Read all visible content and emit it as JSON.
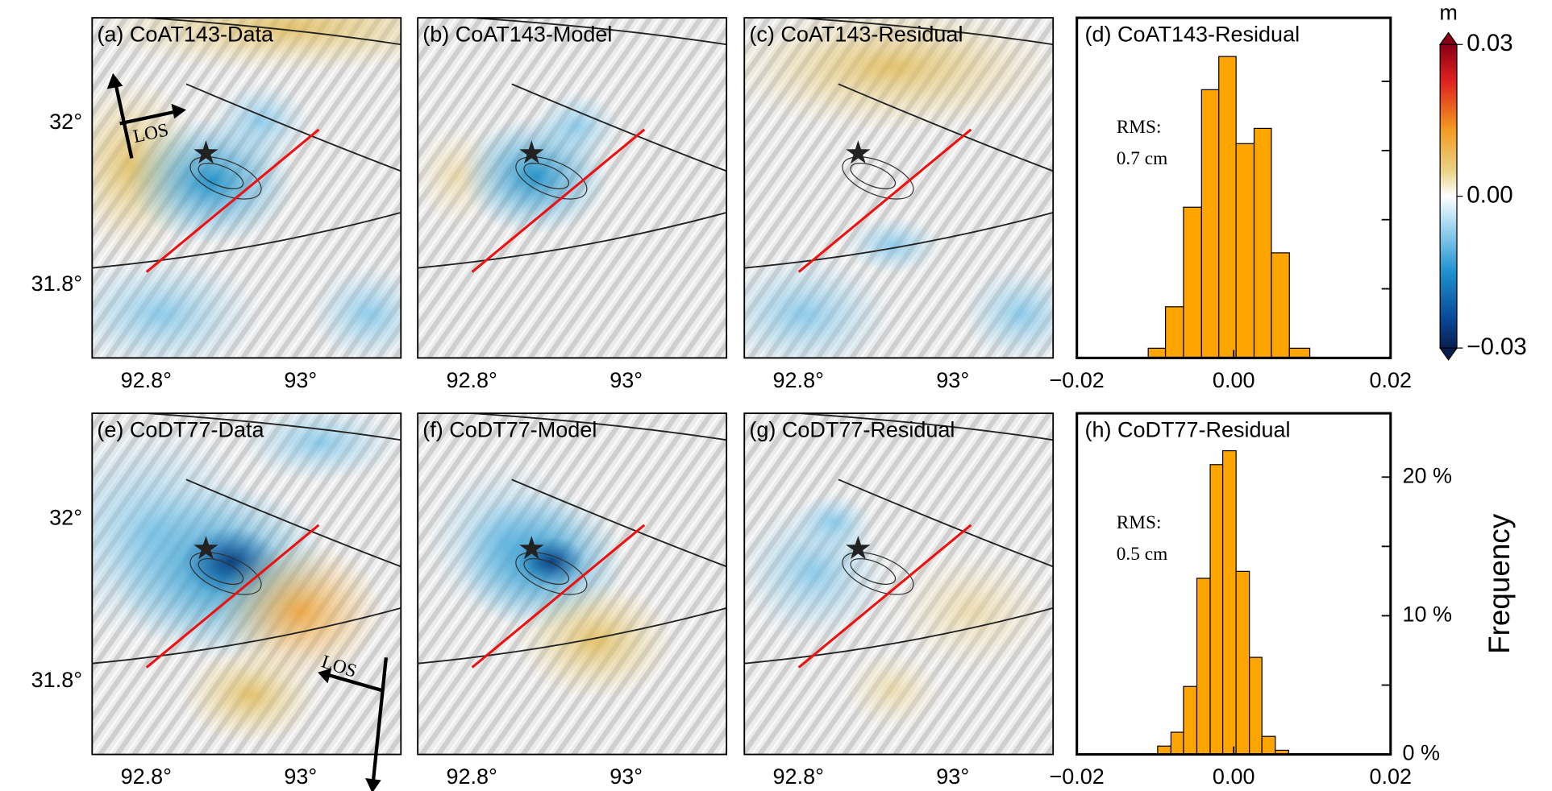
{
  "chart_data": [
    {
      "type": "map",
      "title": "(a) CoAT143-Data",
      "xlim": [
        92.73,
        93.13
      ],
      "ylim": [
        31.71,
        32.13
      ],
      "xticks": [
        {
          "value": 92.8,
          "label": "92.8°"
        },
        {
          "value": 93,
          "label": "93°"
        }
      ],
      "yticks": [
        {
          "value": 32,
          "label": "32°"
        },
        {
          "value": 31.8,
          "label": "31.8°"
        }
      ],
      "annotations": [
        "LOS"
      ]
    },
    {
      "type": "map",
      "title": "(b) CoAT143-Model",
      "xlim": [
        92.73,
        93.13
      ],
      "ylim": [
        31.71,
        32.13
      ],
      "xticks": [
        {
          "value": 92.8,
          "label": "92.8°"
        },
        {
          "value": 93,
          "label": "93°"
        }
      ]
    },
    {
      "type": "map",
      "title": "(c) CoAT143-Residual",
      "xlim": [
        92.73,
        93.13
      ],
      "ylim": [
        31.71,
        32.13
      ],
      "xticks": [
        {
          "value": 92.8,
          "label": "92.8°"
        },
        {
          "value": 93,
          "label": "93°"
        }
      ]
    },
    {
      "type": "histogram",
      "title": "(d) CoAT143-Residual",
      "color": "#ffa500",
      "bins": [
        -0.0109,
        -0.0087,
        -0.0064,
        -0.0041,
        -0.0019,
        0.0003,
        0.0026,
        0.0048,
        0.0071,
        0.0097
      ],
      "values": [
        0.7,
        3.7,
        10.9,
        19.4,
        21.8,
        15.5,
        16.6,
        7.6,
        0.7
      ],
      "xlim": [
        -0.02,
        0.02
      ],
      "xticks": [
        {
          "value": -0.02,
          "label": "−0.02"
        },
        {
          "value": 0,
          "label": "0.00"
        },
        {
          "value": 0.02,
          "label": "0.02"
        }
      ],
      "ylim": [
        0,
        24.6
      ],
      "yminor_ticks": [
        0,
        5,
        10,
        15,
        20
      ],
      "annotations": [
        "RMS:",
        "0.7 cm"
      ]
    },
    {
      "type": "map",
      "title": "(e) CoDT77-Data",
      "xlim": [
        92.73,
        93.13
      ],
      "ylim": [
        31.71,
        32.13
      ],
      "xticks": [
        {
          "value": 92.8,
          "label": "92.8°"
        },
        {
          "value": 93,
          "label": "93°"
        }
      ],
      "yticks": [
        {
          "value": 32,
          "label": "32°"
        },
        {
          "value": 31.8,
          "label": "31.8°"
        }
      ],
      "annotations": [
        "LOS"
      ]
    },
    {
      "type": "map",
      "title": "(f) CoDT77-Model",
      "xlim": [
        92.73,
        93.13
      ],
      "ylim": [
        31.71,
        32.13
      ],
      "xticks": [
        {
          "value": 92.8,
          "label": "92.8°"
        },
        {
          "value": 93,
          "label": "93°"
        }
      ]
    },
    {
      "type": "map",
      "title": "(g) CoDT77-Residual",
      "xlim": [
        92.73,
        93.13
      ],
      "ylim": [
        31.71,
        32.13
      ],
      "xticks": [
        {
          "value": 92.8,
          "label": "92.8°"
        },
        {
          "value": 93,
          "label": "93°"
        }
      ]
    },
    {
      "type": "histogram",
      "title": "(h) CoDT77-Residual",
      "color": "#ffa500",
      "bins": [
        -0.0097,
        -0.008,
        -0.0064,
        -0.0047,
        -0.003,
        -0.0014,
        0.0003,
        0.002,
        0.0036,
        0.0053,
        0.007
      ],
      "values": [
        0.6,
        1.6,
        4.9,
        12.7,
        20.9,
        21.9,
        13.2,
        7.0,
        1.3,
        0.3
      ],
      "xlim": [
        -0.02,
        0.02
      ],
      "xticks": [
        {
          "value": -0.02,
          "label": "−0.02"
        },
        {
          "value": 0,
          "label": "0.00"
        },
        {
          "value": 0.02,
          "label": "0.02"
        }
      ],
      "ylim": [
        0,
        24.6
      ],
      "yticks": [
        {
          "value": 0,
          "label": "0 %"
        },
        {
          "value": 10,
          "label": "10 %"
        },
        {
          "value": 20,
          "label": "20 %"
        }
      ],
      "yminor_ticks": [
        5,
        15
      ],
      "ylabel": "Frequency",
      "annotations": [
        "RMS:",
        "0.5 cm"
      ]
    }
  ],
  "colorbar": {
    "label": "m",
    "lim": [
      -0.03,
      0.03
    ],
    "ticks": [
      0.03,
      {
        "value": 0,
        "label": "0.00"
      },
      {
        "value": -0.03,
        "label": "−0.03"
      }
    ]
  }
}
